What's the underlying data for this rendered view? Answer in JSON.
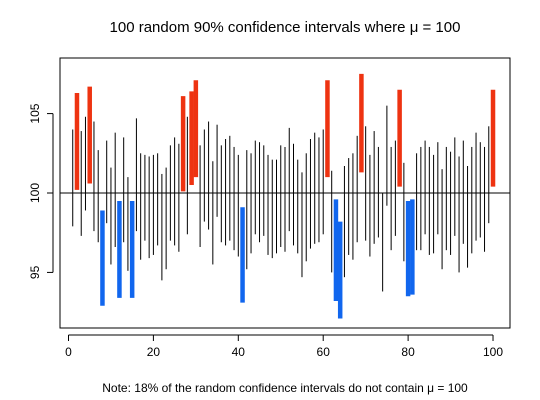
{
  "chart_data": {
    "type": "interval",
    "title": "100 random 90% confidence intervals where μ = 100",
    "footnote": "Note: 18% of the random confidence intervals do not contain μ = 100",
    "xlabel": "",
    "ylabel": "",
    "xlim": [
      -2,
      104
    ],
    "ylim": [
      91.5,
      108.5
    ],
    "x_ticks": [
      0,
      20,
      40,
      60,
      80,
      100
    ],
    "y_ticks": [
      95,
      100,
      105
    ],
    "reference_line": 100,
    "colors": {
      "contains": "#000000",
      "above": "#ee3311",
      "below": "#1166ee"
    },
    "intervals": [
      [
        97.9,
        104.0
      ],
      [
        100.2,
        106.3
      ],
      [
        97.3,
        103.9
      ],
      [
        98.9,
        104.8
      ],
      [
        100.6,
        106.7
      ],
      [
        97.6,
        104.5
      ],
      [
        96.9,
        102.7
      ],
      [
        92.9,
        98.9
      ],
      [
        98.1,
        103.3
      ],
      [
        95.5,
        101.6
      ],
      [
        96.6,
        103.8
      ],
      [
        93.4,
        99.5
      ],
      [
        96.9,
        103.5
      ],
      [
        95.1,
        101.0
      ],
      [
        93.4,
        99.5
      ],
      [
        97.6,
        104.7
      ],
      [
        95.8,
        102.5
      ],
      [
        97.0,
        102.4
      ],
      [
        95.9,
        102.3
      ],
      [
        96.1,
        102.4
      ],
      [
        96.7,
        102.5
      ],
      [
        94.5,
        101.2
      ],
      [
        95.2,
        101.6
      ],
      [
        97.0,
        103.0
      ],
      [
        96.7,
        103.5
      ],
      [
        96.3,
        103.1
      ],
      [
        100.1,
        106.1
      ],
      [
        97.4,
        104.8
      ],
      [
        100.5,
        106.4
      ],
      [
        101.0,
        107.1
      ],
      [
        96.6,
        103.0
      ],
      [
        98.2,
        104.0
      ],
      [
        97.7,
        104.5
      ],
      [
        95.5,
        102.0
      ],
      [
        98.5,
        104.3
      ],
      [
        96.9,
        103.0
      ],
      [
        96.7,
        103.4
      ],
      [
        97.0,
        103.6
      ],
      [
        96.4,
        102.9
      ],
      [
        96.0,
        102.4
      ],
      [
        93.1,
        99.1
      ],
      [
        95.2,
        102.7
      ],
      [
        96.2,
        102.5
      ],
      [
        97.4,
        103.3
      ],
      [
        96.9,
        103.2
      ],
      [
        97.3,
        103.0
      ],
      [
        96.1,
        102.4
      ],
      [
        95.9,
        102.1
      ],
      [
        96.2,
        102.1
      ],
      [
        96.6,
        103.0
      ],
      [
        96.3,
        102.9
      ],
      [
        97.6,
        104.1
      ],
      [
        96.7,
        103.1
      ],
      [
        96.2,
        102.1
      ],
      [
        94.7,
        101.3
      ],
      [
        95.7,
        102.5
      ],
      [
        96.5,
        103.4
      ],
      [
        96.8,
        103.8
      ],
      [
        96.9,
        103.5
      ],
      [
        97.4,
        104.0
      ],
      [
        101.0,
        107.1
      ],
      [
        95.0,
        101.4
      ],
      [
        93.2,
        99.6
      ],
      [
        92.1,
        98.2
      ],
      [
        94.7,
        101.7
      ],
      [
        96.1,
        102.2
      ],
      [
        95.8,
        102.5
      ],
      [
        96.9,
        103.6
      ],
      [
        101.3,
        107.5
      ],
      [
        97.0,
        104.2
      ],
      [
        96.0,
        102.4
      ],
      [
        96.8,
        103.9
      ],
      [
        97.2,
        102.9
      ],
      [
        93.8,
        100.0
      ],
      [
        99.2,
        105.5
      ],
      [
        96.4,
        102.9
      ],
      [
        97.3,
        103.3
      ],
      [
        100.4,
        106.5
      ],
      [
        95.7,
        101.9
      ],
      [
        93.5,
        99.5
      ],
      [
        93.6,
        99.6
      ],
      [
        96.4,
        102.5
      ],
      [
        96.4,
        102.9
      ],
      [
        97.4,
        103.3
      ],
      [
        96.1,
        102.9
      ],
      [
        96.2,
        102.4
      ],
      [
        97.4,
        103.2
      ],
      [
        95.2,
        101.5
      ],
      [
        96.4,
        102.9
      ],
      [
        96.1,
        102.6
      ],
      [
        97.3,
        103.5
      ],
      [
        95.0,
        102.3
      ],
      [
        96.8,
        103.3
      ],
      [
        95.3,
        101.7
      ],
      [
        96.2,
        102.9
      ],
      [
        97.0,
        103.8
      ],
      [
        97.2,
        103.2
      ],
      [
        96.3,
        102.9
      ],
      [
        98.1,
        104.2
      ],
      [
        100.4,
        106.5
      ]
    ]
  }
}
